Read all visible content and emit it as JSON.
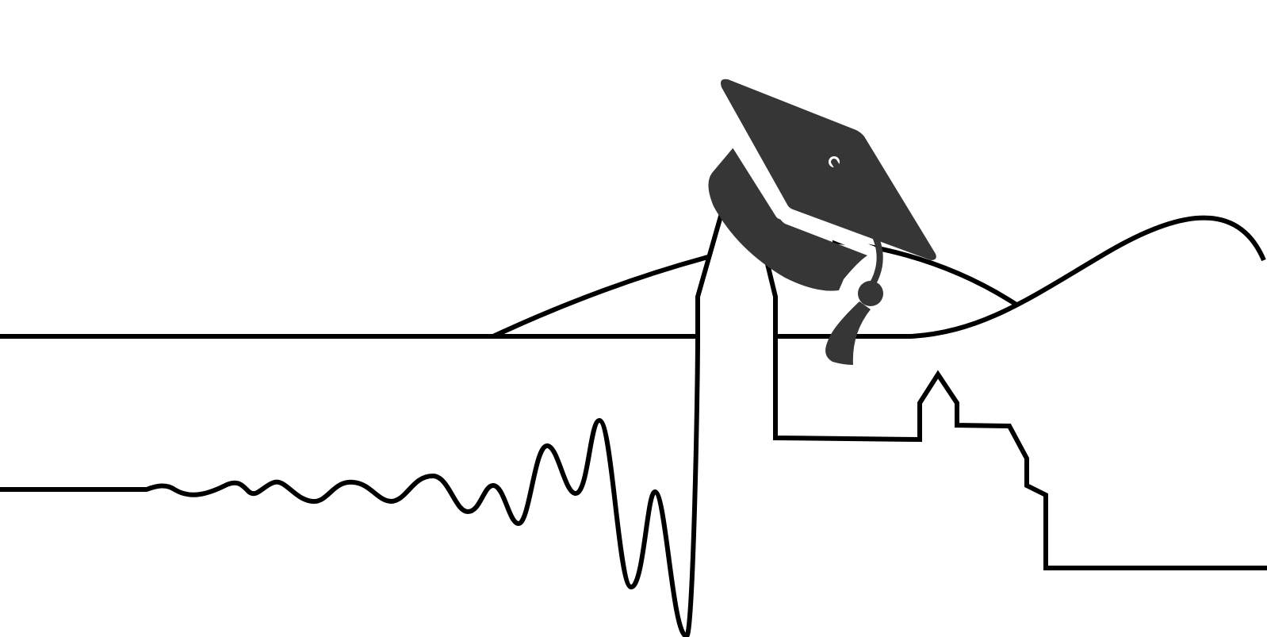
{
  "illustration": {
    "icons": [
      "graduation-cap-icon",
      "seismic-wave-icon",
      "skyline-icon"
    ],
    "colors": {
      "background": "#ffffff",
      "line": "#000000",
      "cap": "#363636",
      "cap_highlight": "#ffffff"
    }
  }
}
